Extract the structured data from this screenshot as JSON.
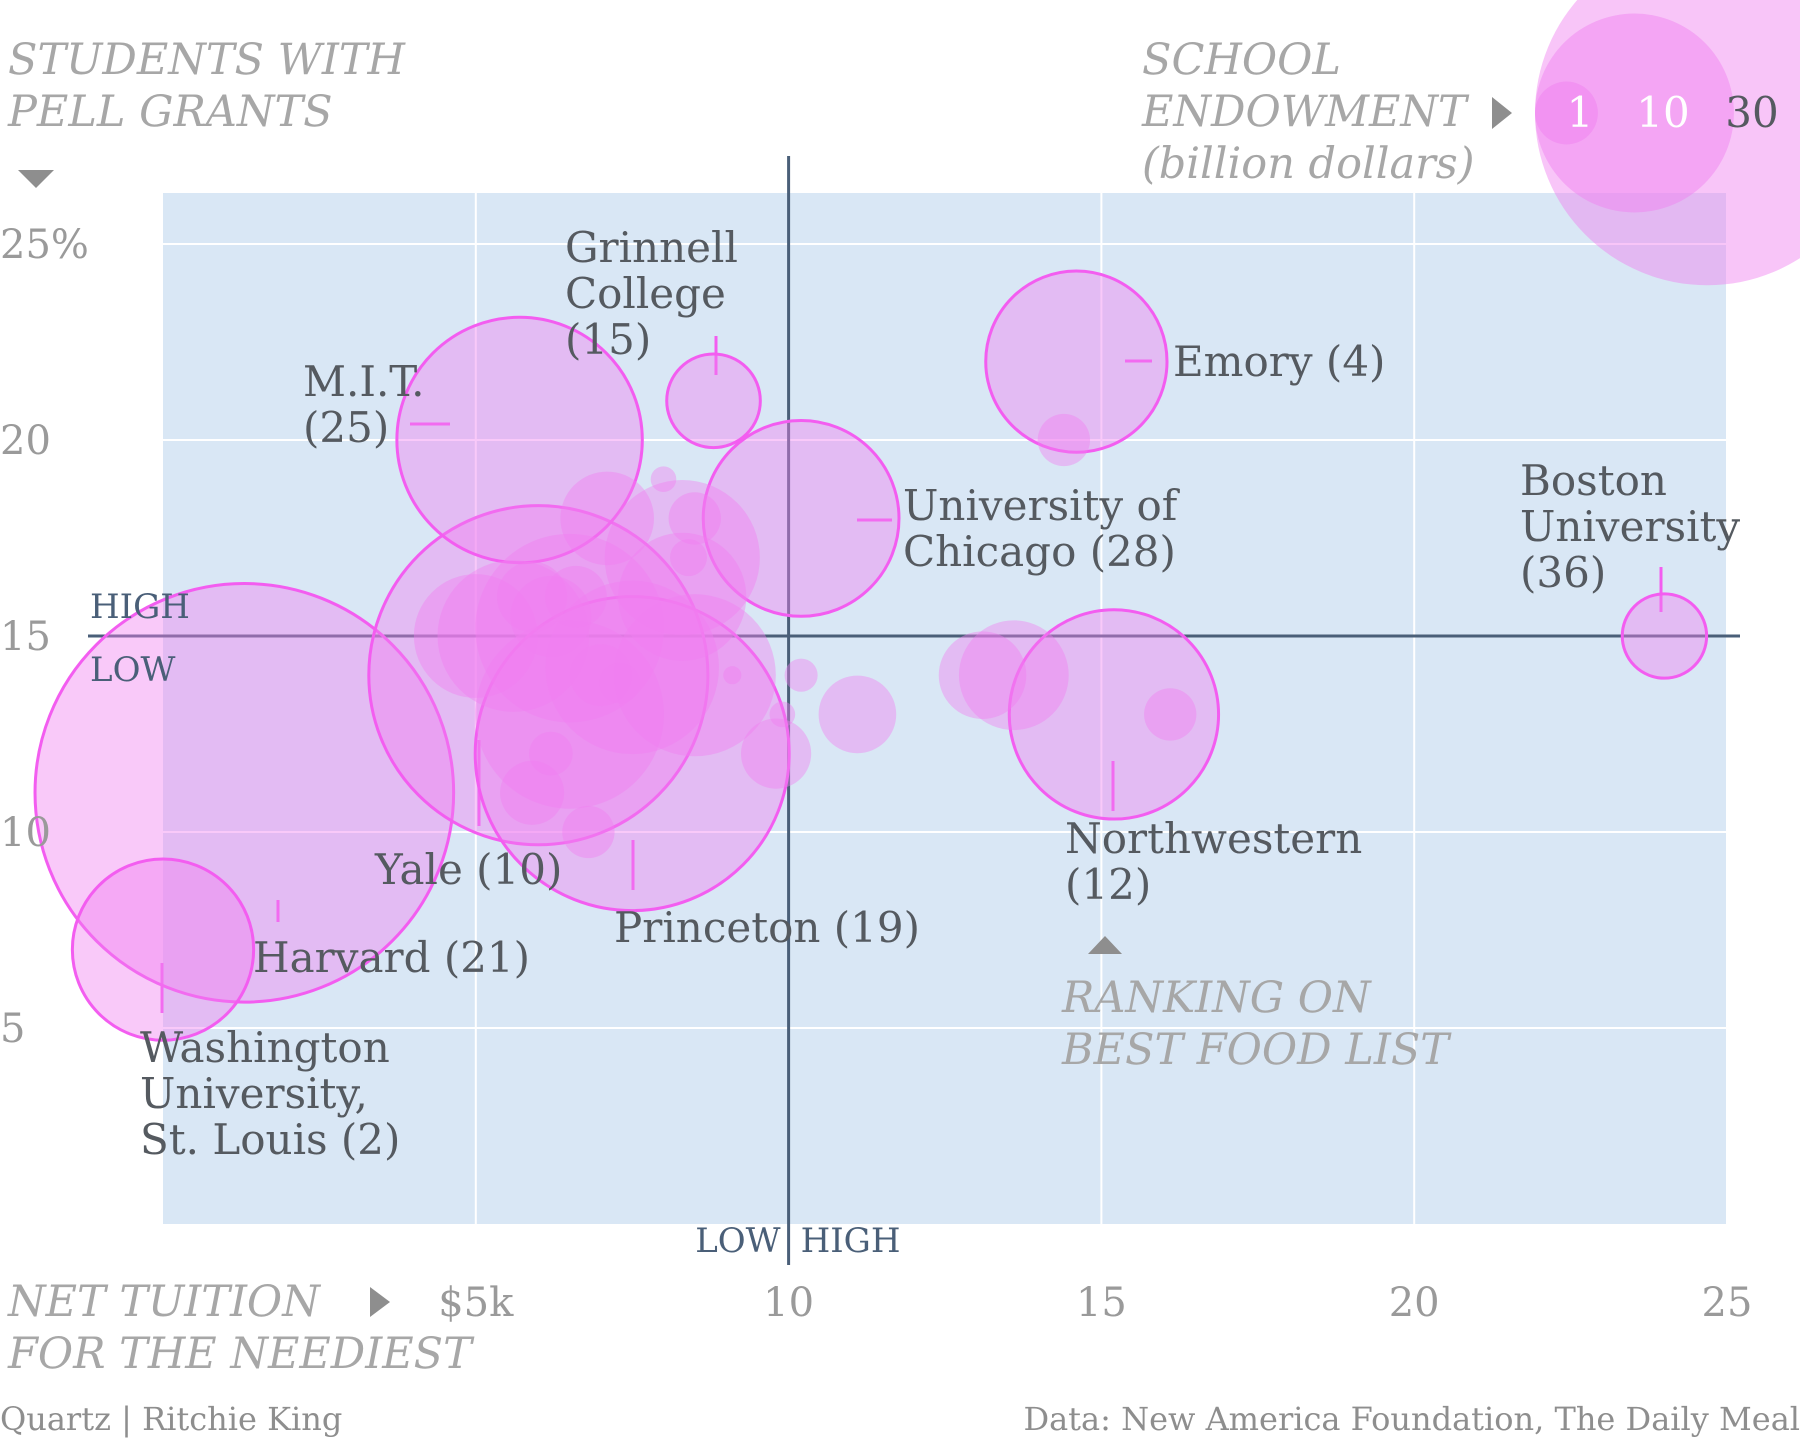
{
  "chart_data": {
    "type": "scatter",
    "y_title": [
      "STUDENTS WITH",
      "PELL GRANTS"
    ],
    "x_title": [
      "NET TUITION",
      "FOR THE NEEDIEST"
    ],
    "size_title": [
      "SCHOOL",
      "ENDOWMENT",
      "(billion dollars)"
    ],
    "rank_title": [
      "RANKING ON",
      "BEST FOOD LIST"
    ],
    "x_ticks": [
      {
        "value": 5,
        "label": "$5k"
      },
      {
        "value": 10,
        "label": "10"
      },
      {
        "value": 15,
        "label": "15"
      },
      {
        "value": 20,
        "label": "20"
      },
      {
        "value": 25,
        "label": "25"
      }
    ],
    "y_ticks": [
      {
        "value": 25,
        "label": "25%"
      },
      {
        "value": 20,
        "label": "20"
      },
      {
        "value": 15,
        "label": "15"
      },
      {
        "value": 10,
        "label": "10"
      },
      {
        "value": 5,
        "label": "5"
      }
    ],
    "xlim": [
      0,
      25
    ],
    "ylim": [
      0,
      26.3
    ],
    "quadrant": {
      "x_split": 10,
      "y_split": 15,
      "y_high": "HIGH",
      "y_low": "LOW",
      "x_low": "LOW",
      "x_high": "HIGH"
    },
    "size_legend": [
      {
        "value": 1,
        "label": "1"
      },
      {
        "value": 10,
        "label": "10"
      },
      {
        "value": 30,
        "label": "30"
      }
    ],
    "colors": {
      "plot_bg": "#d9e7f5",
      "bubble_fill": "#f07ff0",
      "bubble_stroke": "#f35df0",
      "quad_line": "#4a5f78",
      "leader": "#f35df0"
    },
    "labeled_points": [
      {
        "name": "Washington University, St. Louis",
        "lines": [
          "Washington",
          "University,",
          "St. Louis (2)"
        ],
        "x": 0,
        "y": 7,
        "endowment": 6,
        "rank": 2
      },
      {
        "name": "Harvard",
        "lines": [
          "Harvard (21)"
        ],
        "x": 1.3,
        "y": 11,
        "endowment": 32,
        "rank": 21
      },
      {
        "name": "Yale",
        "lines": [
          "Yale (10)"
        ],
        "x": 6,
        "y": 14,
        "endowment": 21,
        "rank": 10
      },
      {
        "name": "Princeton",
        "lines": [
          "Princeton (19)"
        ],
        "x": 7.5,
        "y": 12,
        "endowment": 18,
        "rank": 19
      },
      {
        "name": "M.I.T.",
        "lines": [
          "M.I.T.",
          "(25)"
        ],
        "x": 5.7,
        "y": 20,
        "endowment": 11,
        "rank": 25
      },
      {
        "name": "Grinnell College",
        "lines": [
          "Grinnell",
          "College",
          "(15)"
        ],
        "x": 8.8,
        "y": 21,
        "endowment": 1.6,
        "rank": 15
      },
      {
        "name": "University of Chicago",
        "lines": [
          "University of",
          "Chicago (28)"
        ],
        "x": 10.2,
        "y": 18,
        "endowment": 7,
        "rank": 28
      },
      {
        "name": "Emory",
        "lines": [
          "Emory (4)"
        ],
        "x": 14.6,
        "y": 22,
        "endowment": 6,
        "rank": 4
      },
      {
        "name": "Northwestern",
        "lines": [
          "Northwestern",
          "(12)"
        ],
        "x": 15.2,
        "y": 13,
        "endowment": 8,
        "rank": 12
      },
      {
        "name": "Boston University",
        "lines": [
          "Boston",
          "University",
          "(36)"
        ],
        "x": 24,
        "y": 15,
        "endowment": 1.3,
        "rank": 36
      }
    ],
    "other_points": [
      {
        "x": 5.9,
        "y": 16,
        "endowment": 0.9
      },
      {
        "x": 6.2,
        "y": 15.5,
        "endowment": 1.2
      },
      {
        "x": 5.6,
        "y": 15,
        "endowment": 4.2
      },
      {
        "x": 5.0,
        "y": 15,
        "endowment": 2.8
      },
      {
        "x": 6.5,
        "y": 15.2,
        "endowment": 6.5
      },
      {
        "x": 6.6,
        "y": 16,
        "endowment": 0.7
      },
      {
        "x": 6.5,
        "y": 13,
        "endowment": 6.5
      },
      {
        "x": 7.5,
        "y": 14.2,
        "endowment": 5.5
      },
      {
        "x": 8.5,
        "y": 14,
        "endowment": 4.8
      },
      {
        "x": 8.3,
        "y": 17,
        "endowment": 4.4
      },
      {
        "x": 8.3,
        "y": 16,
        "endowment": 3.0
      },
      {
        "x": 7.1,
        "y": 18,
        "endowment": 1.6
      },
      {
        "x": 8.5,
        "y": 18,
        "endowment": 0.5
      },
      {
        "x": 8.4,
        "y": 17,
        "endowment": 0.25
      },
      {
        "x": 8.0,
        "y": 19,
        "endowment": 0.12
      },
      {
        "x": 7.0,
        "y": 14,
        "endowment": 0.7
      },
      {
        "x": 7.3,
        "y": 13.8,
        "endowment": 0.3
      },
      {
        "x": 6.2,
        "y": 12,
        "endowment": 0.35
      },
      {
        "x": 5.9,
        "y": 11,
        "endowment": 0.75
      },
      {
        "x": 6.8,
        "y": 10,
        "endowment": 0.5
      },
      {
        "x": 9.1,
        "y": 14,
        "endowment": 0.06
      },
      {
        "x": 9.9,
        "y": 13,
        "endowment": 0.12
      },
      {
        "x": 9.8,
        "y": 12,
        "endowment": 0.9
      },
      {
        "x": 10.2,
        "y": 14,
        "endowment": 0.2
      },
      {
        "x": 11.1,
        "y": 13,
        "endowment": 1.1
      },
      {
        "x": 13.1,
        "y": 14,
        "endowment": 1.4
      },
      {
        "x": 13.6,
        "y": 14,
        "endowment": 2.2
      },
      {
        "x": 14.4,
        "y": 20,
        "endowment": 0.5
      },
      {
        "x": 16.1,
        "y": 13,
        "endowment": 0.5
      }
    ]
  },
  "credits": {
    "left": "Quartz | Ritchie King",
    "right": "Data: New America Foundation, The Daily Meal"
  }
}
